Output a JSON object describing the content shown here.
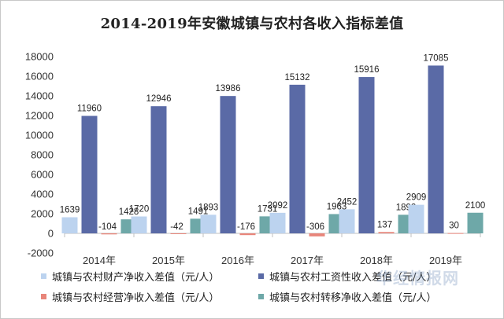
{
  "chart_data": {
    "type": "bar",
    "title": "2014-2019年安徽城镇与农村各收入指标差值",
    "categories": [
      "2014年",
      "2015年",
      "2016年",
      "2017年",
      "2018年",
      "2019年"
    ],
    "ylim": [
      -2000,
      18000
    ],
    "yticks": [
      -2000,
      0,
      2000,
      4000,
      6000,
      8000,
      10000,
      12000,
      14000,
      16000,
      18000
    ],
    "grid": false,
    "legend_position": "bottom",
    "series": [
      {
        "name": "城镇与农村财产净收入差值（元/人）",
        "color": "#bcd3ef",
        "values": [
          1639,
          1720,
          1893,
          2092,
          2452,
          2909
        ]
      },
      {
        "name": "城镇与农村工资性收入差值（元/人）",
        "color": "#5a6aa6",
        "values": [
          11960,
          12946,
          13986,
          15132,
          15916,
          17085
        ]
      },
      {
        "name": "城镇与农村经营净收入差值（元/人）",
        "color": "#e8857a",
        "values": [
          -104,
          -42,
          -176,
          -306,
          137,
          30
        ]
      },
      {
        "name": "城镇与农村转移净收入差值（元/人）",
        "color": "#6ea8a8",
        "values": [
          1428,
          1491,
          1731,
          1963,
          1892,
          2100
        ]
      }
    ]
  },
  "watermark": "华经情报网"
}
